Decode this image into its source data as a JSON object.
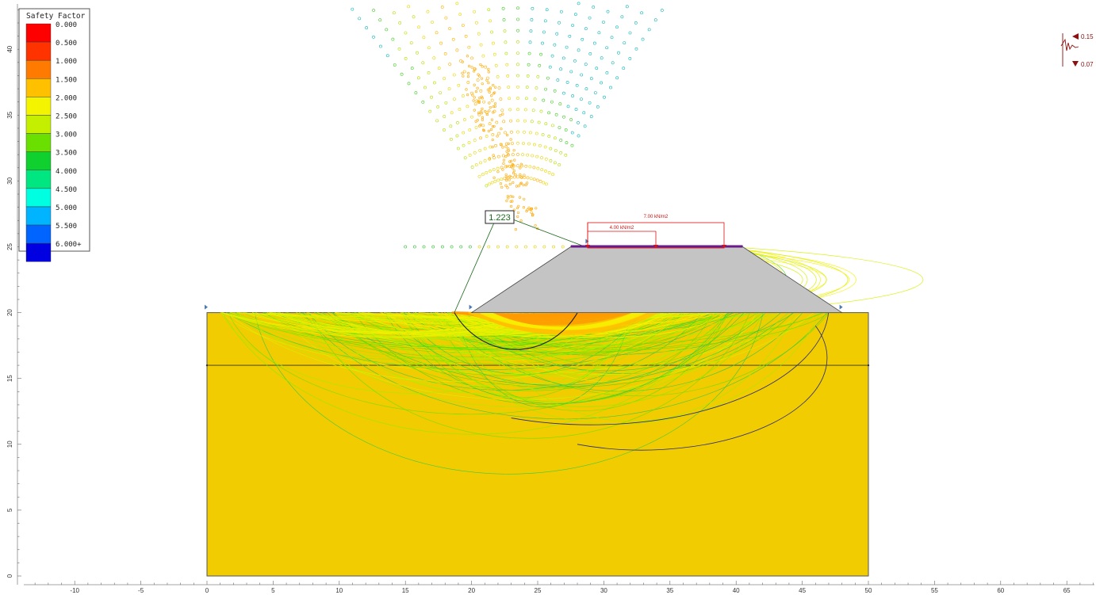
{
  "legend": {
    "title": "Safety Factor",
    "entries": [
      {
        "label": "0.000",
        "color": "#ff0000"
      },
      {
        "label": "0.500",
        "color": "#ff3300"
      },
      {
        "label": "1.000",
        "color": "#ff7a00"
      },
      {
        "label": "1.500",
        "color": "#ffc000"
      },
      {
        "label": "2.000",
        "color": "#f4f400"
      },
      {
        "label": "2.500",
        "color": "#c4f000"
      },
      {
        "label": "3.000",
        "color": "#6ae000"
      },
      {
        "label": "3.500",
        "color": "#10d030"
      },
      {
        "label": "4.000",
        "color": "#00e680"
      },
      {
        "label": "4.500",
        "color": "#00ffe0"
      },
      {
        "label": "5.000",
        "color": "#00b4ff"
      },
      {
        "label": "5.500",
        "color": "#0064ff"
      },
      {
        "label": "6.000+",
        "color": "#0000e0"
      }
    ]
  },
  "model": {
    "soil_color": "#f0cc00",
    "embankment_color": "#c4c4c4",
    "water_table_elevation": 16,
    "ground_elevation": 20,
    "crest_elevation": 25,
    "extents_x": [
      0,
      50
    ],
    "extents_y": [
      0,
      20
    ],
    "embankment_polygon": [
      [
        20,
        20
      ],
      [
        27.5,
        25
      ],
      [
        40.5,
        25
      ],
      [
        48,
        20
      ]
    ]
  },
  "min_surface": {
    "safety_factor": "1.223",
    "center": [
      22,
      27.5
    ]
  },
  "loads": [
    {
      "label": "7.00 kN/m2",
      "x_range": [
        29,
        39
      ],
      "height": 27
    },
    {
      "label": "4.00 kN/m2",
      "x_range": [
        29,
        34
      ],
      "height": 26
    }
  ],
  "seismic": {
    "horizontal": "0.15",
    "vertical": "0.07"
  },
  "axes": {
    "x_ticks": [
      "-10",
      "-5",
      "0",
      "5",
      "10",
      "15",
      "20",
      "25",
      "30",
      "35",
      "40",
      "45",
      "50",
      "55",
      "60",
      "65"
    ],
    "y_ticks": [
      "0",
      "5",
      "10",
      "15",
      "20",
      "25",
      "30",
      "35",
      "40"
    ]
  }
}
